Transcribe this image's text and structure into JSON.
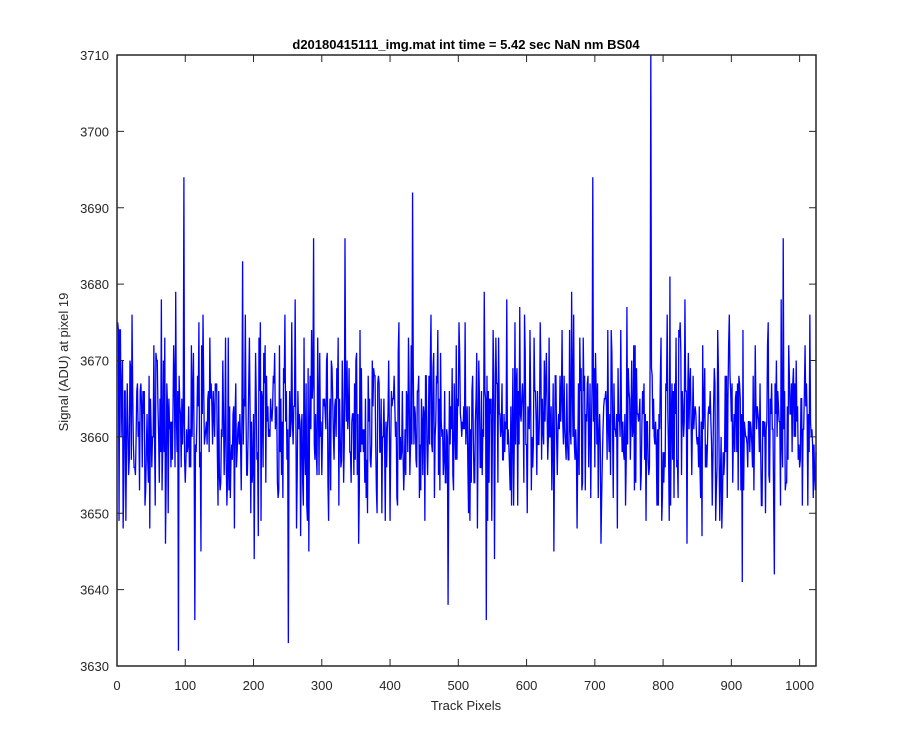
{
  "chart_data": {
    "type": "line",
    "title": "d20180415111_img.mat int time = 5.42 sec  NaN nm BS04",
    "xlabel": "Track Pixels",
    "ylabel": "Signal (ADU) at pixel 19",
    "xlim": [
      0,
      1024
    ],
    "ylim": [
      3630,
      3710
    ],
    "xticks": [
      0,
      100,
      200,
      300,
      400,
      500,
      600,
      700,
      800,
      900,
      1000
    ],
    "yticks": [
      3630,
      3640,
      3650,
      3660,
      3670,
      3680,
      3690,
      3700,
      3710
    ],
    "grid": false,
    "legend": "none",
    "series": [
      {
        "color": "#0000ff",
        "noise": {
          "count": 1024,
          "mean": 3662,
          "spread": 6.5,
          "min": 3632,
          "max": 3710
        },
        "peaks": [
          {
            "x": 89,
            "y": 3632
          },
          {
            "x": 97,
            "y": 3694
          },
          {
            "x": 113,
            "y": 3636
          },
          {
            "x": 183,
            "y": 3683
          },
          {
            "x": 250,
            "y": 3633
          },
          {
            "x": 287,
            "y": 3686
          },
          {
            "x": 333,
            "y": 3686
          },
          {
            "x": 432,
            "y": 3692
          },
          {
            "x": 484,
            "y": 3638
          },
          {
            "x": 540,
            "y": 3636
          },
          {
            "x": 696,
            "y": 3694
          },
          {
            "x": 781,
            "y": 3710
          },
          {
            "x": 915,
            "y": 3641
          },
          {
            "x": 962,
            "y": 3642
          },
          {
            "x": 975,
            "y": 3686
          }
        ]
      }
    ]
  }
}
